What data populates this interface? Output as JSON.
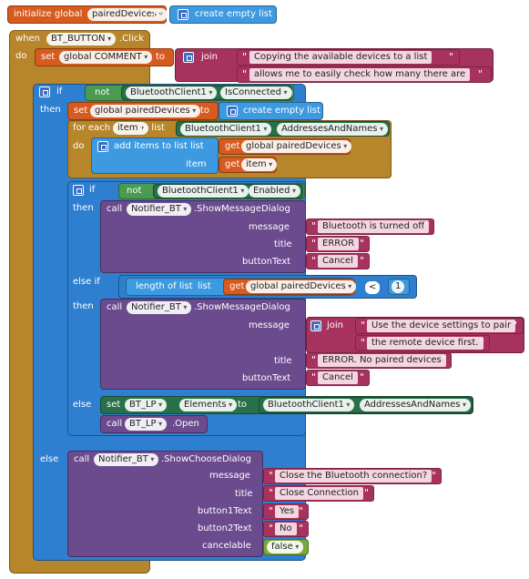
{
  "init": {
    "label": "initialize global",
    "var": "pairedDevices",
    "to": "to",
    "create": "create empty list"
  },
  "event": {
    "when": "when",
    "component": "BT_BUTTON",
    "event": ".Click",
    "do": "do"
  },
  "comment": {
    "set": "set",
    "var": "global COMMENT",
    "to": "to",
    "join": "join",
    "s1": "Copying the available devices to a list",
    "s2": "allows me to easily check how many there are"
  },
  "if1": {
    "if": "if",
    "not": "not",
    "component": "BluetoothClient1",
    "prop": "IsConnected",
    "then": "then",
    "else": "else"
  },
  "setpd": {
    "set": "set",
    "var": "global pairedDevices",
    "to": "to",
    "create": "create empty list"
  },
  "foreach": {
    "for_each": "for each",
    "item": "item",
    "in_list": "in list",
    "component": "BluetoothClient1",
    "prop": "AddressesAndNames",
    "do": "do"
  },
  "additems": {
    "label": "add items to list",
    "list": "list",
    "get_list": "get",
    "list_var": "global pairedDevices",
    "item": "item",
    "get_item": "get",
    "item_var": "item"
  },
  "if2": {
    "if": "if",
    "not": "not",
    "component": "BluetoothClient1",
    "prop": "Enabled",
    "then": "then",
    "else_if": "else if",
    "then2": "then",
    "else": "else"
  },
  "msg1": {
    "call": "call",
    "component": "Notifier_BT",
    "method": ".ShowMessageDialog",
    "message": "message",
    "title": "title",
    "button": "buttonText",
    "message_val": "Bluetooth is turned off",
    "title_val": "ERROR",
    "button_val": "Cancel"
  },
  "cond2": {
    "length": "length of list",
    "list": "list",
    "get": "get",
    "var": "global pairedDevices",
    "op": "<",
    "num": "1"
  },
  "msg2": {
    "call": "call",
    "component": "Notifier_BT",
    "method": ".ShowMessageDialog",
    "message": "message",
    "title": "title",
    "button": "buttonText",
    "join": "join",
    "s1": "Use the device settings to pair",
    "s2": "the remote device first.",
    "title_val": "ERROR. No paired devices",
    "button_val": "Cancel"
  },
  "setlp": {
    "set": "set",
    "component": "BT_LP",
    "prop": "Elements",
    "to": "to",
    "src_component": "BluetoothClient1",
    "src_prop": "AddressesAndNames"
  },
  "open": {
    "call": "call",
    "component": "BT_LP",
    "method": ".Open"
  },
  "choose": {
    "call": "call",
    "component": "Notifier_BT",
    "method": ".ShowChooseDialog",
    "message": "message",
    "title": "title",
    "b1": "button1Text",
    "b2": "button2Text",
    "cancel": "cancelable",
    "message_val": "Close the Bluetooth connection?",
    "title_val": "Close Connection",
    "b1_val": "Yes",
    "b2_val": "No",
    "cancel_val": "false"
  }
}
